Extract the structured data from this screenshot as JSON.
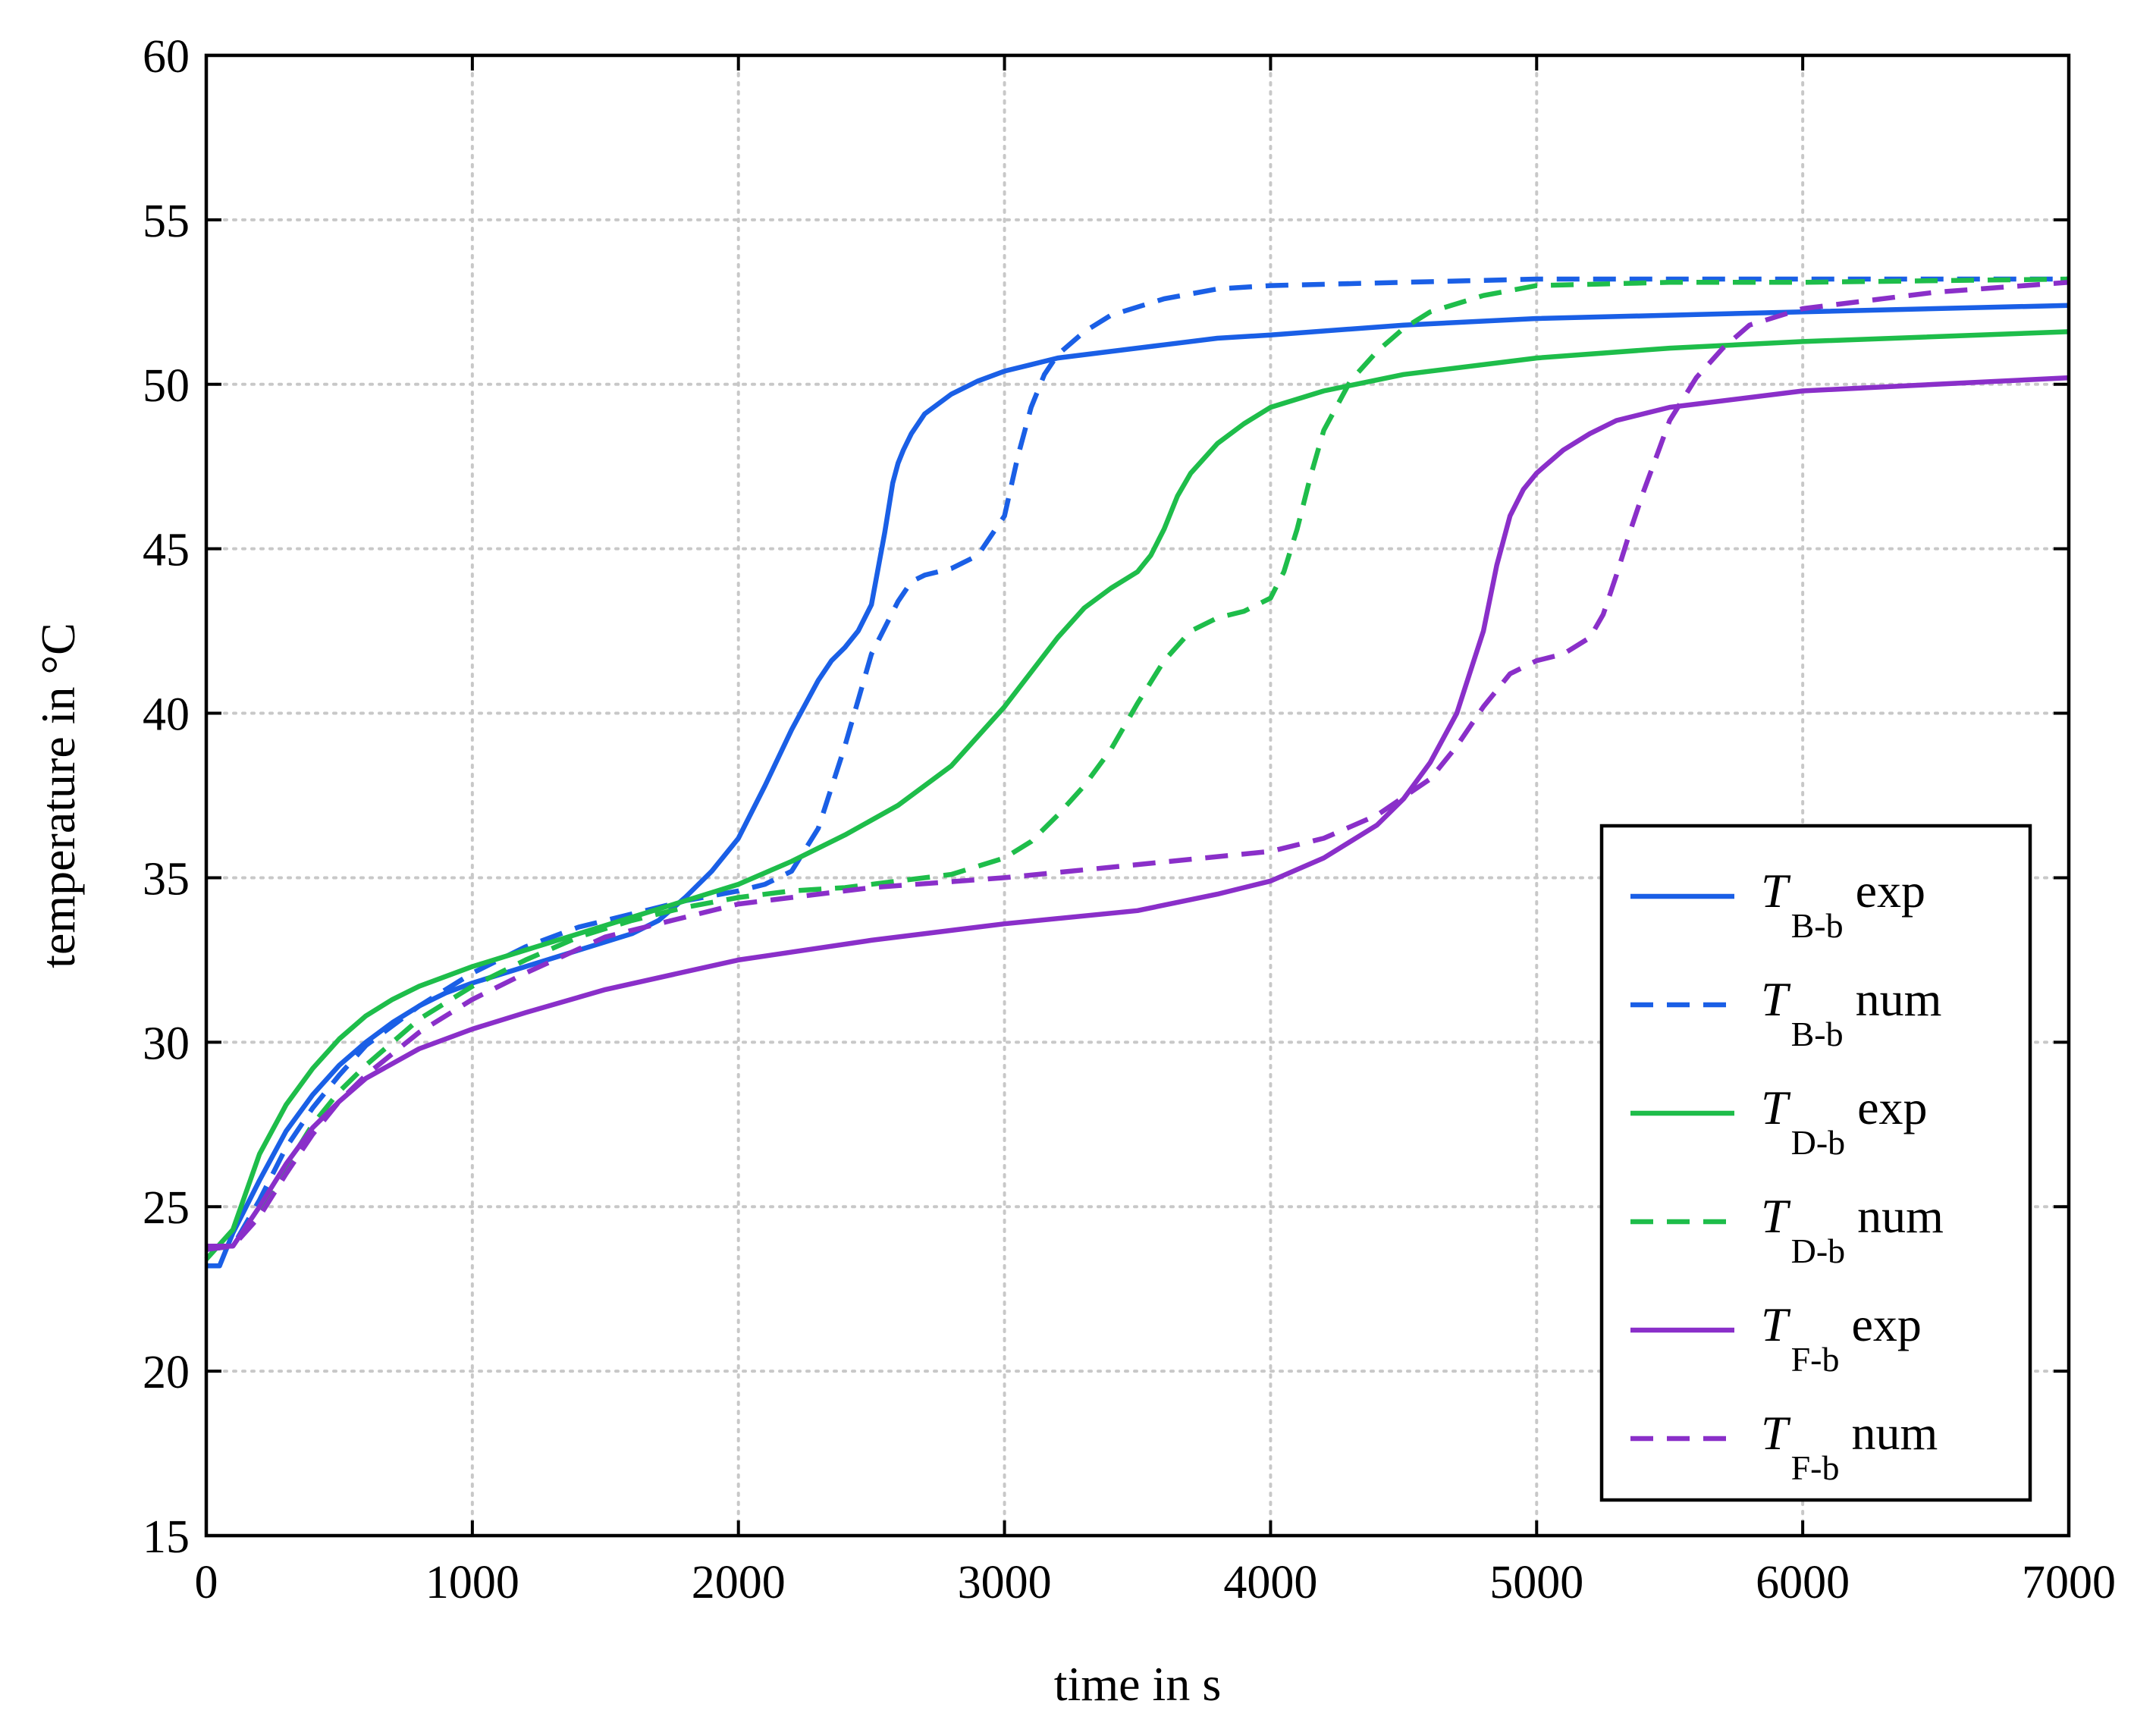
{
  "chart_data": {
    "type": "line",
    "title": "",
    "xlabel": "time in s",
    "ylabel": "temperature in °C",
    "xlim": [
      0,
      7000
    ],
    "ylim": [
      15,
      60
    ],
    "xticks": [
      0,
      1000,
      2000,
      3000,
      4000,
      5000,
      6000,
      7000
    ],
    "yticks": [
      15,
      20,
      25,
      30,
      35,
      40,
      45,
      50,
      55,
      60
    ],
    "grid": true,
    "legend_position": "bottom-right",
    "series": [
      {
        "name": "T B-b exp",
        "symbol": "T",
        "subscript": "B-b",
        "suffix": "exp",
        "color": "#1a5fe6",
        "dash": "solid",
        "x": [
          0,
          50,
          100,
          200,
          300,
          400,
          500,
          600,
          700,
          800,
          900,
          1000,
          1200,
          1400,
          1600,
          1700,
          1800,
          1900,
          2000,
          2100,
          2200,
          2300,
          2350,
          2400,
          2450,
          2500,
          2550,
          2580,
          2600,
          2620,
          2650,
          2700,
          2800,
          2900,
          3000,
          3100,
          3200,
          3400,
          3600,
          3800,
          4000,
          4500,
          5000,
          6000,
          7000
        ],
        "y": [
          23.2,
          23.2,
          24.2,
          25.8,
          27.3,
          28.4,
          29.3,
          30.0,
          30.6,
          31.1,
          31.5,
          31.8,
          32.3,
          32.8,
          33.3,
          33.7,
          34.4,
          35.2,
          36.2,
          37.8,
          39.5,
          41.0,
          41.6,
          42.0,
          42.5,
          43.3,
          45.5,
          47.0,
          47.6,
          48.0,
          48.5,
          49.1,
          49.7,
          50.1,
          50.4,
          50.6,
          50.8,
          51.0,
          51.2,
          51.4,
          51.5,
          51.8,
          52.0,
          52.2,
          52.4
        ]
      },
      {
        "name": "T B-b num",
        "symbol": "T",
        "subscript": "B-b",
        "suffix": "num",
        "color": "#1a5fe6",
        "dash": "dashed",
        "x": [
          0,
          100,
          200,
          300,
          400,
          500,
          600,
          800,
          1000,
          1200,
          1400,
          1600,
          1800,
          2000,
          2100,
          2200,
          2300,
          2400,
          2500,
          2600,
          2650,
          2700,
          2800,
          2900,
          3000,
          3050,
          3100,
          3150,
          3200,
          3300,
          3400,
          3600,
          3800,
          4000,
          4500,
          5000,
          6000,
          7000
        ],
        "y": [
          23.7,
          23.8,
          25.2,
          26.8,
          28.0,
          29.0,
          29.9,
          31.1,
          32.1,
          32.9,
          33.5,
          33.9,
          34.3,
          34.6,
          34.8,
          35.2,
          36.5,
          39.0,
          41.8,
          43.4,
          44.0,
          44.2,
          44.4,
          44.8,
          46.0,
          47.8,
          49.3,
          50.3,
          50.9,
          51.6,
          52.1,
          52.6,
          52.9,
          53.0,
          53.1,
          53.2,
          53.2,
          53.2
        ]
      },
      {
        "name": "T D-b exp",
        "symbol": "T",
        "subscript": "D-b",
        "suffix": "exp",
        "color": "#1ebd4a",
        "dash": "solid",
        "x": [
          0,
          100,
          200,
          300,
          400,
          500,
          600,
          700,
          800,
          900,
          1000,
          1200,
          1400,
          1600,
          1800,
          2000,
          2200,
          2400,
          2600,
          2800,
          3000,
          3200,
          3300,
          3400,
          3500,
          3550,
          3600,
          3650,
          3700,
          3800,
          3900,
          4000,
          4200,
          4500,
          5000,
          5500,
          6000,
          7000
        ],
        "y": [
          23.4,
          24.3,
          26.6,
          28.1,
          29.2,
          30.1,
          30.8,
          31.3,
          31.7,
          32.0,
          32.3,
          32.8,
          33.3,
          33.8,
          34.3,
          34.8,
          35.5,
          36.3,
          37.2,
          38.4,
          40.2,
          42.3,
          43.2,
          43.8,
          44.3,
          44.8,
          45.6,
          46.6,
          47.3,
          48.2,
          48.8,
          49.3,
          49.8,
          50.3,
          50.8,
          51.1,
          51.3,
          51.6
        ]
      },
      {
        "name": "T D-b num",
        "symbol": "T",
        "subscript": "D-b",
        "suffix": "num",
        "color": "#1ebd4a",
        "dash": "dashed",
        "x": [
          0,
          100,
          200,
          300,
          400,
          500,
          600,
          800,
          1000,
          1200,
          1400,
          1600,
          1800,
          2000,
          2200,
          2400,
          2600,
          2800,
          3000,
          3100,
          3200,
          3300,
          3400,
          3500,
          3600,
          3700,
          3800,
          3900,
          4000,
          4050,
          4100,
          4150,
          4200,
          4300,
          4400,
          4500,
          4600,
          4800,
          5000,
          5500,
          6000,
          7000
        ],
        "y": [
          23.7,
          23.8,
          24.8,
          26.2,
          27.5,
          28.5,
          29.3,
          30.7,
          31.7,
          32.5,
          33.2,
          33.7,
          34.1,
          34.4,
          34.6,
          34.7,
          34.9,
          35.1,
          35.6,
          36.1,
          36.9,
          37.8,
          38.9,
          40.3,
          41.6,
          42.5,
          42.9,
          43.1,
          43.5,
          44.3,
          45.6,
          47.2,
          48.6,
          50.1,
          51.0,
          51.7,
          52.2,
          52.7,
          53.0,
          53.1,
          53.1,
          53.2
        ]
      },
      {
        "name": "T F-b exp",
        "symbol": "T",
        "subscript": "F-b",
        "suffix": "exp",
        "color": "#8a2fc9",
        "dash": "solid",
        "x": [
          0,
          100,
          200,
          300,
          400,
          500,
          600,
          800,
          1000,
          1200,
          1500,
          2000,
          2500,
          3000,
          3500,
          3800,
          4000,
          4200,
          4400,
          4500,
          4600,
          4700,
          4800,
          4850,
          4900,
          4950,
          5000,
          5100,
          5200,
          5300,
          5500,
          6000,
          6500,
          7000
        ],
        "y": [
          23.8,
          23.8,
          25.0,
          26.3,
          27.4,
          28.2,
          28.9,
          29.8,
          30.4,
          30.9,
          31.6,
          32.5,
          33.1,
          33.6,
          34.0,
          34.5,
          34.9,
          35.6,
          36.6,
          37.4,
          38.5,
          40.0,
          42.5,
          44.5,
          46.0,
          46.8,
          47.3,
          48.0,
          48.5,
          48.9,
          49.3,
          49.8,
          50.0,
          50.2
        ]
      },
      {
        "name": "T F-b num",
        "symbol": "T",
        "subscript": "F-b",
        "suffix": "num",
        "color": "#8a2fc9",
        "dash": "dashed",
        "x": [
          0,
          100,
          200,
          300,
          400,
          500,
          600,
          800,
          1000,
          1200,
          1500,
          2000,
          2500,
          3000,
          3500,
          4000,
          4200,
          4400,
          4600,
          4700,
          4800,
          4850,
          4900,
          5000,
          5100,
          5200,
          5250,
          5300,
          5350,
          5400,
          5450,
          5500,
          5600,
          5700,
          5800,
          6000,
          6500,
          7000
        ],
        "y": [
          23.7,
          23.8,
          24.7,
          26.0,
          27.2,
          28.2,
          29.0,
          30.3,
          31.3,
          32.1,
          33.2,
          34.2,
          34.7,
          35.0,
          35.4,
          35.8,
          36.2,
          36.9,
          38.0,
          39.0,
          40.2,
          40.7,
          41.2,
          41.6,
          41.8,
          42.3,
          43.0,
          44.2,
          45.5,
          46.7,
          47.8,
          48.9,
          50.2,
          51.1,
          51.8,
          52.3,
          52.8,
          53.1
        ]
      }
    ]
  }
}
